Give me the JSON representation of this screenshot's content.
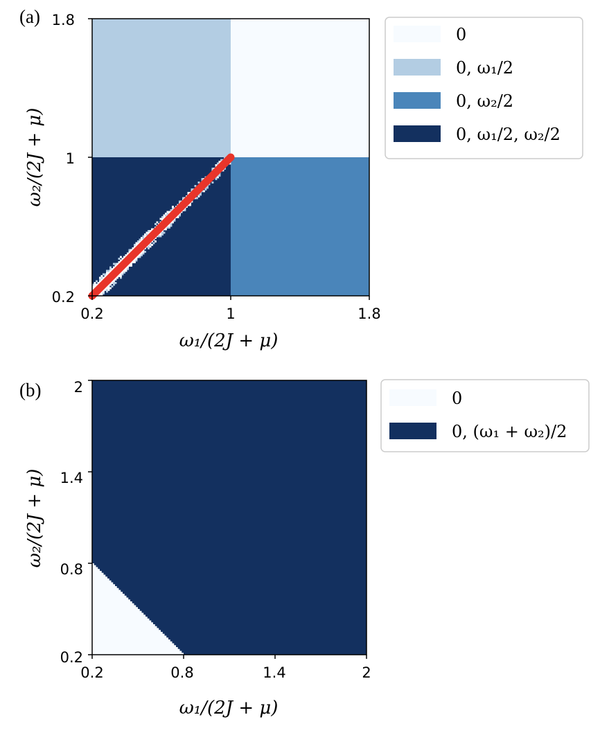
{
  "chart_data": [
    {
      "panel_label": "(a)",
      "type": "heatmap",
      "xlabel": "ω₁/(2J + μ)",
      "ylabel": "ω₂/(2J + μ)",
      "xlim": [
        0.2,
        1.8
      ],
      "ylim": [
        0.2,
        1.8
      ],
      "xticks": [
        "0.2",
        "1",
        "1.8"
      ],
      "yticks": [
        "0.2",
        "1",
        "1.8"
      ],
      "legend_position": "outside-top-right",
      "regions": [
        {
          "label": "0",
          "color": "#f7fbff",
          "x": [
            1.0,
            1.8
          ],
          "y": [
            1.0,
            1.8
          ]
        },
        {
          "label": "0, ω₁/2",
          "color": "#b3cde3",
          "x": [
            0.2,
            1.0
          ],
          "y": [
            1.0,
            1.8
          ]
        },
        {
          "label": "0, ω₂/2",
          "color": "#4a85ba",
          "x": [
            1.0,
            1.8
          ],
          "y": [
            0.2,
            1.0
          ]
        },
        {
          "label": "0, ω₁/2, ω₂/2",
          "color": "#13305f",
          "x": [
            0.2,
            1.0
          ],
          "y": [
            0.2,
            1.0
          ]
        }
      ],
      "diagonal_band": {
        "x": [
          0.2,
          1.0
        ],
        "y": [
          0.2,
          1.0
        ],
        "color": "#f7fbff",
        "half_width": 0.05
      },
      "line": {
        "x": [
          0.2,
          1.0
        ],
        "y": [
          0.2,
          1.0
        ],
        "color": "#e8352a"
      }
    },
    {
      "panel_label": "(b)",
      "type": "heatmap",
      "xlabel": "ω₁/(2J + μ)",
      "ylabel": "ω₂/(2J + μ)",
      "xlim": [
        0.2,
        2.0
      ],
      "ylim": [
        0.2,
        2.0
      ],
      "xticks": [
        "0.2",
        "0.8",
        "1.4",
        "2"
      ],
      "yticks": [
        "0.2",
        "0.8",
        "1.4",
        "2"
      ],
      "legend_position": "outside-top-right",
      "regions": [
        {
          "label": "0",
          "color": "#f7fbff",
          "boundary": "ω₁ + ω₂ < 1.0"
        },
        {
          "label": "0, (ω₁ + ω₂)/2",
          "color": "#13305f",
          "boundary": "ω₁ + ω₂ ≥ 1.0"
        }
      ],
      "boundary_points": {
        "x": [
          0.2,
          0.8
        ],
        "y": [
          0.8,
          0.2
        ]
      }
    }
  ]
}
